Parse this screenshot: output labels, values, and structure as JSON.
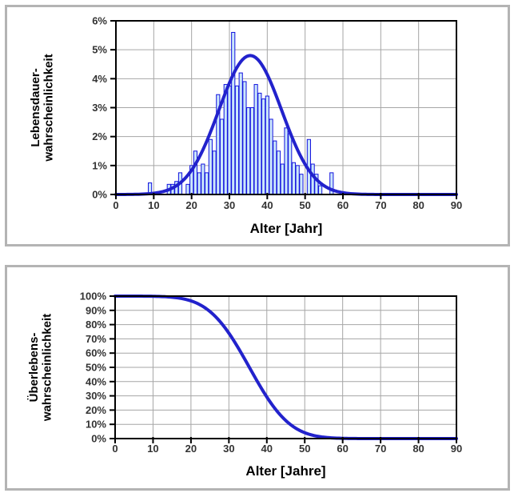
{
  "page": {
    "background": "#ffffff",
    "panel_border_color": "#b4b4b4"
  },
  "colors": {
    "curve_blue": "#2222CC",
    "bar_fill": "#CBE7FB",
    "bar_stroke": "#1212DE",
    "gridline": "#A6A6A6",
    "axis": "#000000",
    "tick_label": "#333333",
    "axis_title": "#000000"
  },
  "chart_data": [
    {
      "type": "bar",
      "title": "",
      "ylabel_lines": [
        "Lebensdauer-",
        "wahrscheinlichkeit"
      ],
      "xlabel": "Alter [Jahr]",
      "xlim": [
        0,
        90
      ],
      "ylim": [
        0,
        6
      ],
      "x_ticks": [
        0,
        10,
        20,
        30,
        40,
        50,
        60,
        70,
        80,
        90
      ],
      "y_ticks": [
        0,
        1,
        2,
        3,
        4,
        5,
        6
      ],
      "y_tick_suffix": "%",
      "grid": true,
      "legend": "none",
      "bar_width_years": 0.88,
      "bars_pct": [
        [
          9,
          0.4
        ],
        [
          14,
          0.35
        ],
        [
          15,
          0.35
        ],
        [
          16,
          0.45
        ],
        [
          17,
          0.75
        ],
        [
          19,
          0.35
        ],
        [
          20,
          1.0
        ],
        [
          21,
          1.5
        ],
        [
          22,
          0.75
        ],
        [
          23,
          1.05
        ],
        [
          24,
          0.75
        ],
        [
          25,
          1.9
        ],
        [
          26,
          1.5
        ],
        [
          27,
          3.45
        ],
        [
          28,
          2.6
        ],
        [
          29,
          3.8
        ],
        [
          30,
          3.75
        ],
        [
          31,
          5.6
        ],
        [
          32,
          3.75
        ],
        [
          33,
          4.2
        ],
        [
          34,
          3.9
        ],
        [
          35,
          3.0
        ],
        [
          36,
          3.0
        ],
        [
          37,
          3.8
        ],
        [
          38,
          3.5
        ],
        [
          39,
          3.3
        ],
        [
          40,
          3.4
        ],
        [
          41,
          2.6
        ],
        [
          42,
          1.85
        ],
        [
          43,
          1.5
        ],
        [
          44,
          1.05
        ],
        [
          45,
          2.3
        ],
        [
          46,
          2.1
        ],
        [
          47,
          1.1
        ],
        [
          48,
          1.0
        ],
        [
          49,
          0.7
        ],
        [
          51,
          1.9
        ],
        [
          52,
          1.05
        ],
        [
          53,
          0.7
        ],
        [
          54,
          0.3
        ],
        [
          57,
          0.75
        ]
      ],
      "fit_curve": {
        "shape": "normal-pdf",
        "mean": 35.5,
        "sigma": 8.3,
        "peak_pct": 4.8,
        "x_range": [
          0,
          90
        ]
      }
    },
    {
      "type": "line",
      "title": "",
      "ylabel_lines": [
        "Überlebens-",
        "wahrscheinlichkeit"
      ],
      "xlabel": "Alter [Jahre]",
      "xlim": [
        0,
        90
      ],
      "ylim": [
        0,
        100
      ],
      "x_ticks": [
        0,
        10,
        20,
        30,
        40,
        50,
        60,
        70,
        80,
        90
      ],
      "y_ticks": [
        0,
        10,
        20,
        30,
        40,
        50,
        60,
        70,
        80,
        90,
        100
      ],
      "y_tick_suffix": "%",
      "grid": true,
      "legend": "none",
      "curve": {
        "shape": "normal-survival",
        "mean": 35.4,
        "sigma": 8.4,
        "x_range": [
          0,
          90
        ]
      },
      "sample_points_pct": [
        [
          0,
          100
        ],
        [
          5,
          100
        ],
        [
          10,
          100
        ],
        [
          15,
          99.2
        ],
        [
          20,
          96.7
        ],
        [
          25,
          89.2
        ],
        [
          30,
          74.0
        ],
        [
          35,
          51.9
        ],
        [
          40,
          29.2
        ],
        [
          45,
          12.6
        ],
        [
          50,
          4.1
        ],
        [
          55,
          1.0
        ],
        [
          60,
          0.2
        ],
        [
          65,
          0
        ],
        [
          70,
          0
        ],
        [
          75,
          0
        ],
        [
          80,
          0
        ],
        [
          85,
          0
        ],
        [
          90,
          0
        ]
      ]
    }
  ]
}
